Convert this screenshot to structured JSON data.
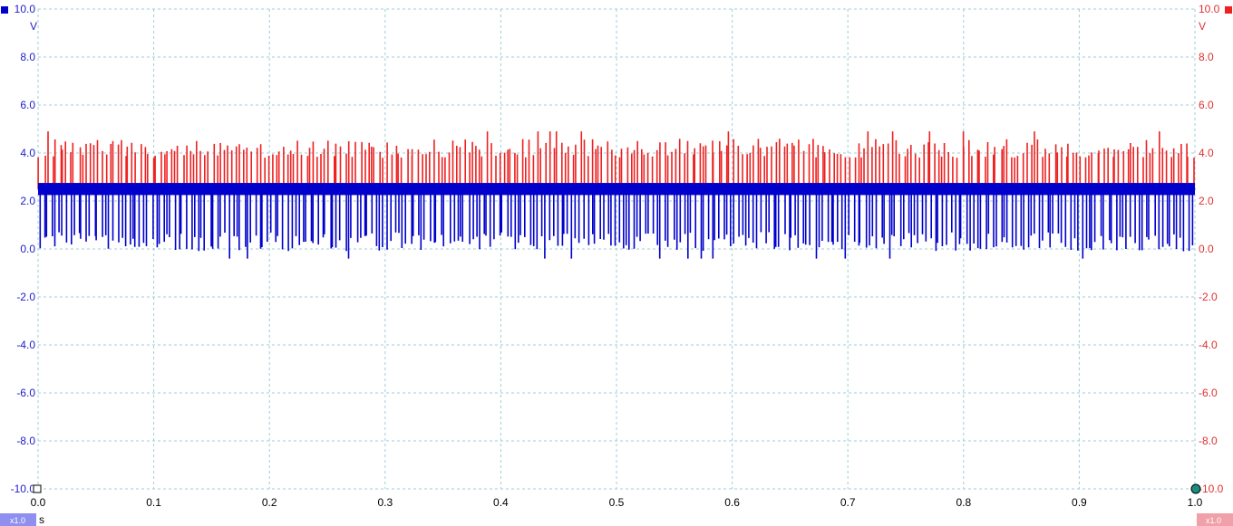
{
  "chart_data": {
    "type": "line",
    "xlabel": "",
    "xunit": "s",
    "xlim": [
      0.0,
      1.0
    ],
    "xticks": [
      "0.0",
      "0.1",
      "0.2",
      "0.3",
      "0.4",
      "0.5",
      "0.6",
      "0.7",
      "0.8",
      "0.9",
      "1.0"
    ],
    "ylim": [
      -10.0,
      10.0
    ],
    "yticks": [
      "10.0",
      "8.0",
      "6.0",
      "4.0",
      "2.0",
      "0.0",
      "-2.0",
      "-4.0",
      "-6.0",
      "-8.0",
      "-10.0"
    ],
    "grid": true,
    "axes": {
      "left": {
        "unit": "V",
        "color": "#0000cc",
        "zoom": "x1.0"
      },
      "right": {
        "unit": "V",
        "color": "#ee2020",
        "zoom": "x1.0"
      }
    },
    "series": [
      {
        "axis": "right",
        "color": "#ee2020",
        "baseline": 2.5,
        "spike_max": 4.9,
        "spike_typical": 4.2,
        "spikes_per_second": 300
      },
      {
        "axis": "left",
        "color": "#0000cc",
        "baseline": 2.5,
        "spike_min": -0.4,
        "spike_typical": 0.3,
        "spikes_per_second": 300
      }
    ]
  },
  "icons": {
    "left_axis_marker": "blue-square-icon",
    "right_axis_marker": "red-square-icon",
    "ruler_left": "ruler-square-icon",
    "ruler_right": "ruler-circle-icon"
  }
}
